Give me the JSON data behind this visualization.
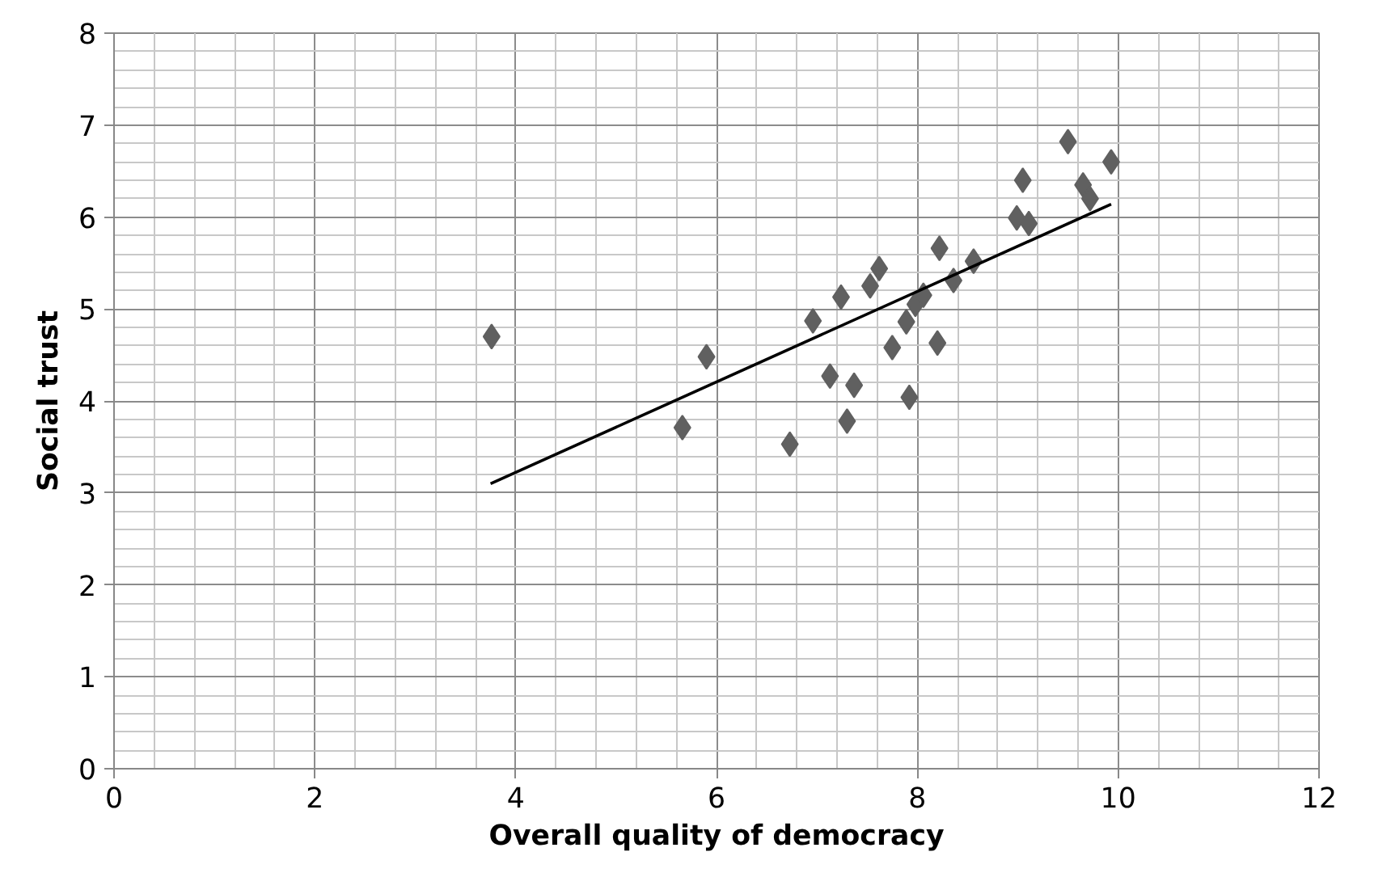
{
  "chart_data": {
    "type": "scatter",
    "xlabel": "Overall quality of democracy",
    "ylabel": "Social trust",
    "xlim": [
      0,
      12
    ],
    "ylim": [
      0,
      8
    ],
    "xticks": [
      0,
      2,
      4,
      6,
      8,
      10,
      12
    ],
    "yticks": [
      0,
      1,
      2,
      3,
      4,
      5,
      6,
      7,
      8
    ],
    "grid": true,
    "marker": "diamond",
    "series": [
      {
        "color": "#606060",
        "x": [
          3.76,
          5.66,
          5.9,
          6.73,
          6.96,
          7.13,
          7.24,
          7.3,
          7.37,
          7.53,
          7.62,
          7.75,
          7.89,
          7.92,
          7.98,
          8.06,
          8.2,
          8.22,
          8.36,
          8.56,
          8.99,
          9.05,
          9.11,
          9.5,
          9.65,
          9.72,
          9.93
        ],
        "values": [
          4.7,
          3.71,
          4.48,
          3.53,
          4.87,
          4.27,
          5.13,
          3.78,
          4.17,
          5.25,
          5.44,
          4.58,
          4.86,
          4.04,
          5.05,
          5.15,
          4.63,
          5.66,
          5.31,
          5.52,
          5.99,
          6.4,
          5.93,
          6.82,
          6.35,
          6.2,
          6.6
        ]
      },
      {
        "type": "line",
        "color": "#000000",
        "marker": "none",
        "x": [
          3.75,
          9.93
        ],
        "values": [
          3.1,
          6.14
        ]
      }
    ]
  }
}
